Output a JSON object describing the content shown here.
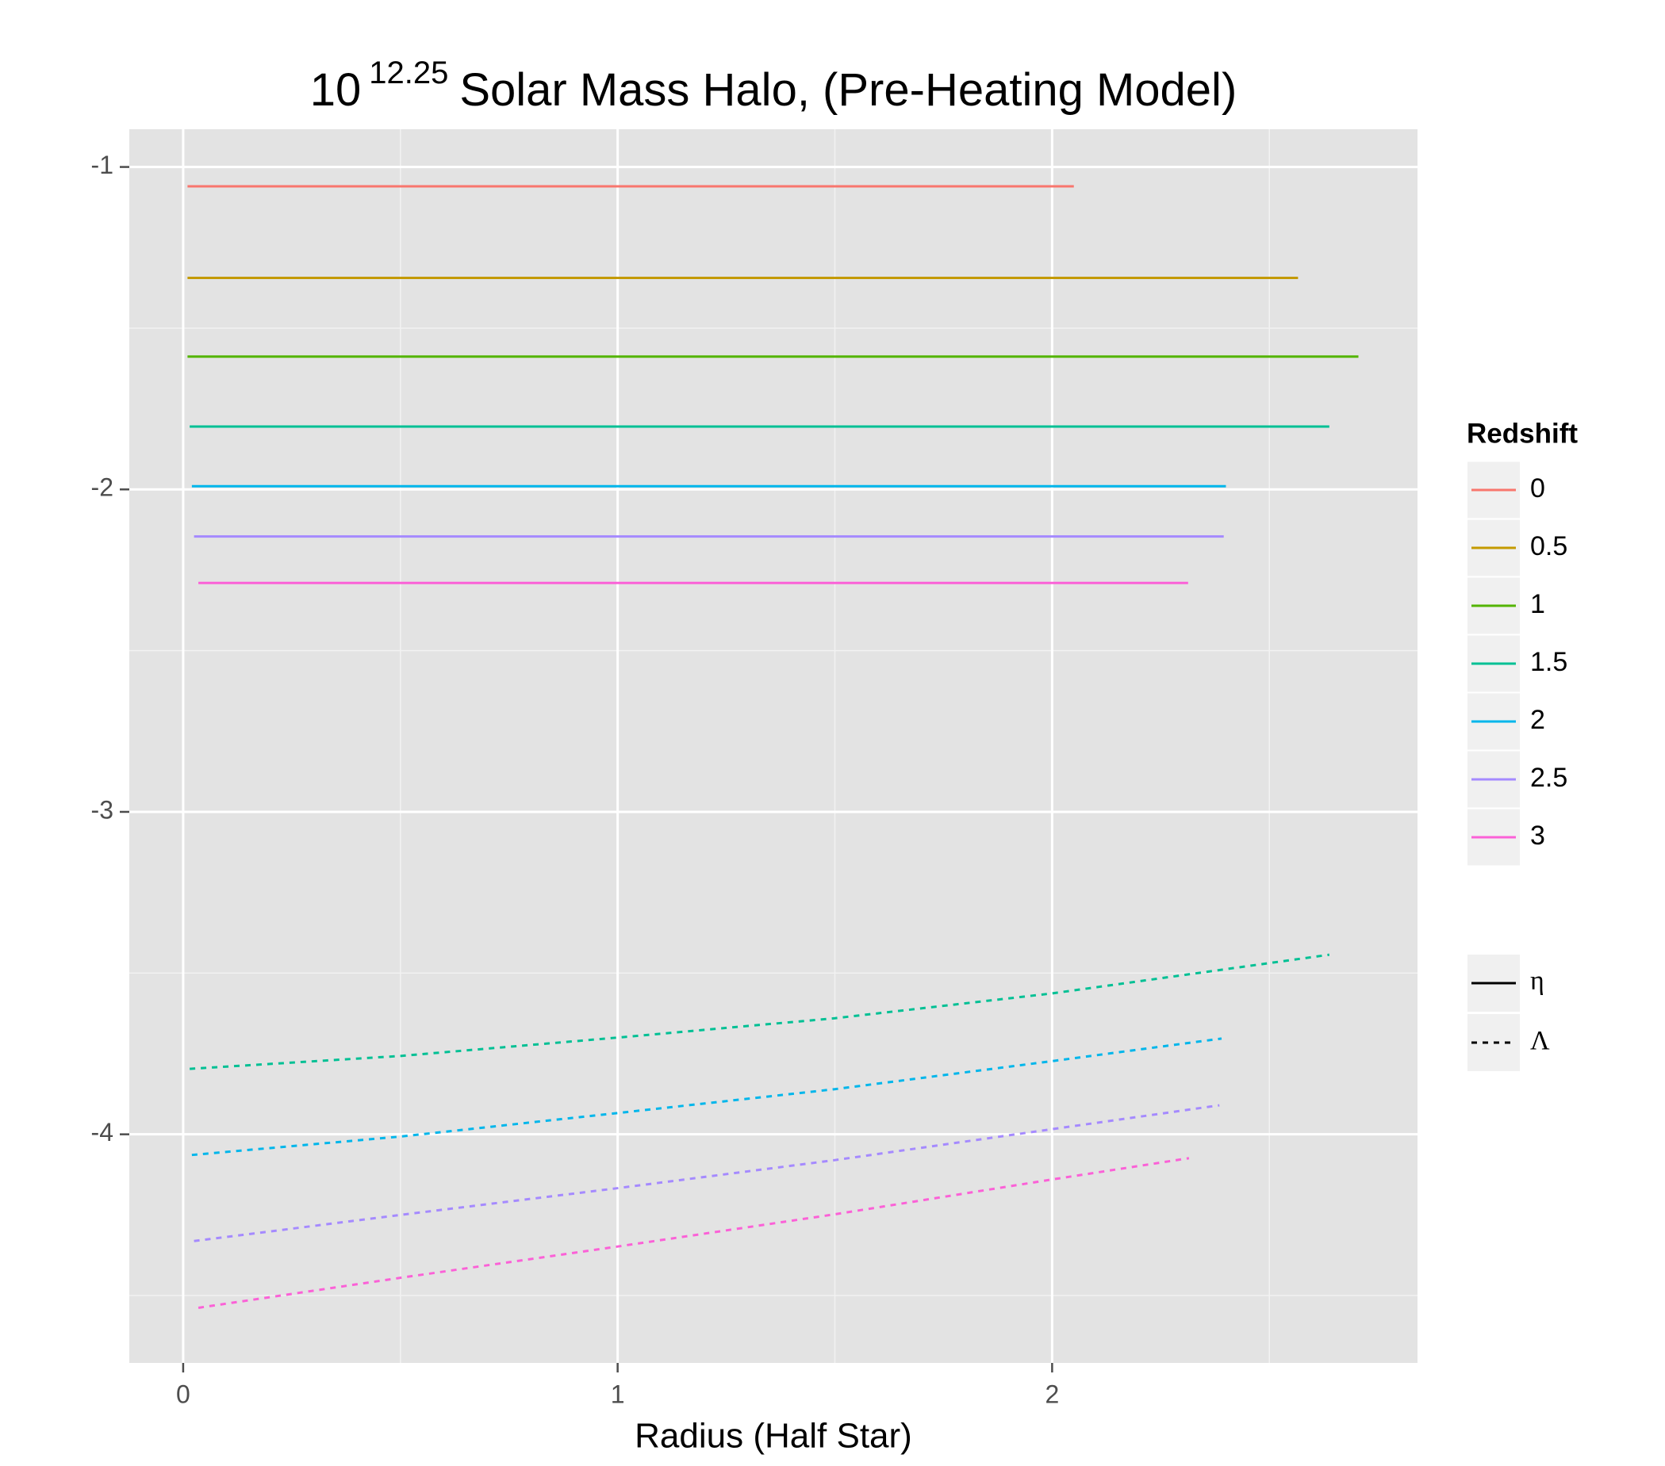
{
  "chart_data": {
    "type": "line",
    "title_base": "10",
    "title_exponent": "12.25",
    "title_rest": "Solar Mass Halo, (Pre-Heating Model)",
    "x_label": "Radius (Half Star)",
    "xlim": [
      -0.124,
      2.841
    ],
    "xticks": [
      0,
      1,
      2
    ],
    "xminor": [
      0.5,
      1.5,
      2.5
    ],
    "ylim": [
      -4.709,
      -0.883
    ],
    "yticks": [
      -1,
      -2,
      -3,
      -4
    ],
    "yminor": [
      -1.5,
      -2.5,
      -3.5,
      -4.5
    ],
    "grid": true,
    "color_legend_title": "Redshift",
    "linetype_legend": [
      {
        "label": "η",
        "dash": "solid"
      },
      {
        "label": "Λ",
        "dash": "dashed"
      }
    ],
    "redshifts": [
      {
        "name": "0",
        "color": "#F8766D",
        "eta": {
          "x": [
            0.01,
            2.05
          ],
          "values": [
            -1.06,
            -1.06
          ]
        }
      },
      {
        "name": "0.5",
        "color": "#C49A00",
        "eta": {
          "x": [
            0.01,
            2.566
          ],
          "values": [
            -1.344,
            -1.344
          ]
        }
      },
      {
        "name": "1",
        "color": "#53B400",
        "eta": {
          "x": [
            0.01,
            2.705
          ],
          "values": [
            -1.588,
            -1.588
          ]
        }
      },
      {
        "name": "1.5",
        "color": "#00C094",
        "eta": {
          "x": [
            0.015,
            2.638
          ],
          "values": [
            -1.805,
            -1.805
          ]
        },
        "lambda": {
          "x": [
            0.015,
            0.5,
            1,
            1.5,
            2,
            2.638
          ],
          "values": [
            -3.797,
            -3.757,
            -3.7,
            -3.64,
            -3.563,
            -3.443
          ]
        }
      },
      {
        "name": "2",
        "color": "#00B6EB",
        "eta": {
          "x": [
            0.02,
            2.4
          ],
          "values": [
            -1.99,
            -1.99
          ]
        },
        "lambda": {
          "x": [
            0.02,
            0.5,
            1,
            1.5,
            2,
            2.39
          ],
          "values": [
            -4.064,
            -4.007,
            -3.934,
            -3.86,
            -3.773,
            -3.703
          ]
        }
      },
      {
        "name": "2.5",
        "color": "#A58AFF",
        "eta": {
          "x": [
            0.025,
            2.395
          ],
          "values": [
            -2.146,
            -2.146
          ]
        },
        "lambda": {
          "x": [
            0.025,
            0.5,
            1,
            1.5,
            2,
            2.385
          ],
          "values": [
            -4.331,
            -4.25,
            -4.167,
            -4.08,
            -3.984,
            -3.91
          ]
        }
      },
      {
        "name": "3",
        "color": "#FB61D7",
        "eta": {
          "x": [
            0.035,
            2.313
          ],
          "values": [
            -2.29,
            -2.29
          ]
        },
        "lambda": {
          "x": [
            0.035,
            0.5,
            1,
            1.5,
            2,
            2.315
          ],
          "values": [
            -4.538,
            -4.445,
            -4.348,
            -4.248,
            -4.14,
            -4.074
          ]
        }
      }
    ]
  }
}
